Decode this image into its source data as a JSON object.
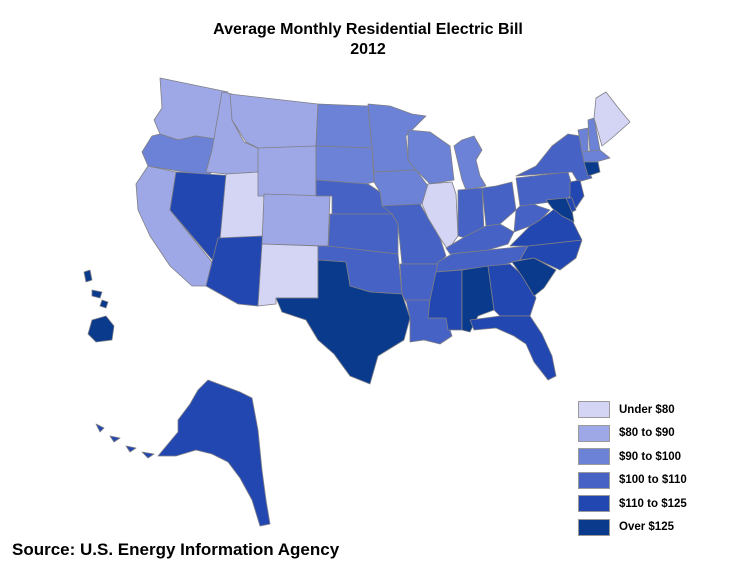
{
  "title": {
    "line1": "Average Monthly Residential Electric Bill",
    "line2": "2012"
  },
  "legend": [
    {
      "label": "Under $80",
      "color": "#d4d4f5"
    },
    {
      "label": "$80 to $90",
      "color": "#9ea8e6"
    },
    {
      "label": "$90 to $100",
      "color": "#6c82d6"
    },
    {
      "label": "$100 to $110",
      "color": "#4562c4"
    },
    {
      "label": "$110 to $125",
      "color": "#2347b0"
    },
    {
      "label": "Over $125",
      "color": "#0a3a8c"
    }
  ],
  "source": "Source: U.S. Energy Information Agency",
  "regions": {
    "WA": 1,
    "OR": 2,
    "CA": 1,
    "ID": 1,
    "NV": 4,
    "UT": 0,
    "AZ": 4,
    "MT": 1,
    "WY": 1,
    "CO": 1,
    "NM": 0,
    "ND": 2,
    "SD": 2,
    "NE": 3,
    "KS": 3,
    "OK": 3,
    "TX": 5,
    "MN": 2,
    "IA": 2,
    "MO": 3,
    "AR": 3,
    "LA": 3,
    "WI": 2,
    "IL": 0,
    "MI": 2,
    "IN": 3,
    "OH": 3,
    "KY": 3,
    "TN": 3,
    "MS": 4,
    "AL": 5,
    "GA": 4,
    "FL": 4,
    "SC": 5,
    "NC": 4,
    "VA": 4,
    "WV": 3,
    "PA": 3,
    "NY": 3,
    "VT": 2,
    "NH": 2,
    "ME": 0,
    "MA": 2,
    "CT": 5,
    "NJ": 4,
    "MD": 5,
    "DE": 4,
    "AK": 4,
    "HI": 5
  }
}
